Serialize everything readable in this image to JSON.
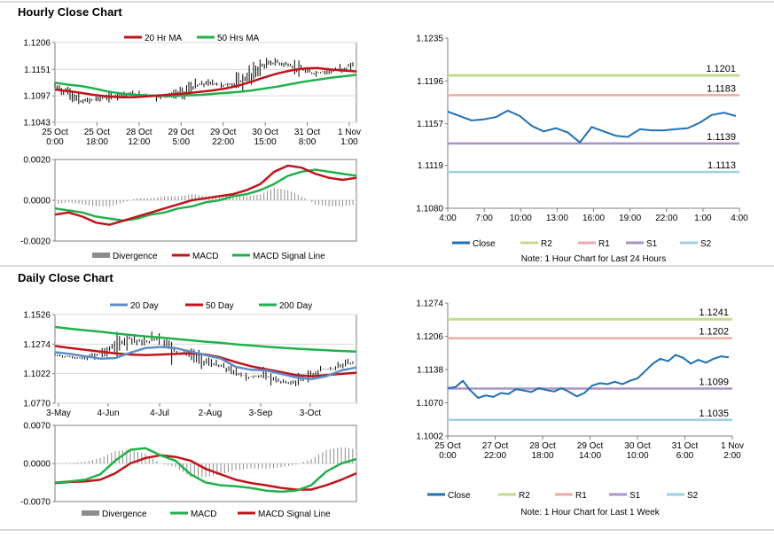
{
  "sections": {
    "hourly_title": "Hourly Close Chart",
    "daily_title": "Daily Close Chart"
  },
  "colors": {
    "close": "#1f6fb4",
    "ma_red": "#c0141b",
    "ma_green": "#22b04c",
    "ma_blue": "#5b8ec7",
    "r2": "#c5d98c",
    "r1": "#f0a9a5",
    "s1": "#a993c6",
    "s2": "#9cd2e2",
    "divergence": "#8c8c8c",
    "price_bar": "#000000"
  },
  "chart_data": [
    {
      "id": "hourly_price",
      "type": "line",
      "legend": [
        "20 Hr MA",
        "50 Hrs MA"
      ],
      "x_ticks": [
        "25 Oct\n0:00",
        "25 Oct\n18:00",
        "28 Oct\n12:00",
        "29 Oct\n5:00",
        "29 Oct\n22:00",
        "30 Oct\n15:00",
        "31 Oct\n8:00",
        "1 Nov\n1:00"
      ],
      "y_ticks": [
        "1.1206",
        "1.1151",
        "1.1097",
        "1.1043"
      ],
      "ylim": [
        1.1043,
        1.1206
      ],
      "series": [
        {
          "name": "20 Hr MA",
          "values": [
            1.111,
            1.1107,
            1.1103,
            1.1099,
            1.1096,
            1.1094,
            1.1094,
            1.1096,
            1.1098,
            1.11,
            1.1102,
            1.1105,
            1.1108,
            1.1112,
            1.1118,
            1.1126,
            1.1135,
            1.1143,
            1.1149,
            1.1153,
            1.1154,
            1.1151,
            1.1149,
            1.1147
          ]
        },
        {
          "name": "50 Hrs MA",
          "values": [
            1.1124,
            1.112,
            1.1117,
            1.1112,
            1.1106,
            1.1102,
            1.1099,
            1.1098,
            1.1097,
            1.1097,
            1.1098,
            1.1099,
            1.1101,
            1.1103,
            1.1105,
            1.1108,
            1.1112,
            1.1116,
            1.1121,
            1.1126,
            1.113,
            1.1134,
            1.1137,
            1.114
          ]
        },
        {
          "name": "Close",
          "values": [
            1.1115,
            1.1104,
            1.1085,
            1.109,
            1.1094,
            1.1099,
            1.1102,
            1.11,
            1.1095,
            1.1098,
            1.1105,
            1.1118,
            1.1124,
            1.1119,
            1.1122,
            1.1136,
            1.1158,
            1.1166,
            1.116,
            1.115,
            1.1143,
            1.1147,
            1.115,
            1.116
          ]
        }
      ]
    },
    {
      "id": "hourly_macd",
      "type": "line",
      "legend": [
        "Divergence",
        "MACD",
        "MACD Signal Line"
      ],
      "y_ticks": [
        "0.0020",
        "0.0000",
        "-0.0020"
      ],
      "ylim": [
        -0.002,
        0.002
      ],
      "series": [
        {
          "name": "MACD",
          "values": [
            -0.0007,
            -0.0006,
            -0.0008,
            -0.0011,
            -0.0012,
            -0.001,
            -0.0008,
            -0.0006,
            -0.0004,
            -0.0002,
            0.0,
            0.0001,
            0.0002,
            0.0003,
            0.0005,
            0.0008,
            0.0014,
            0.0017,
            0.0016,
            0.0013,
            0.0011,
            0.001,
            0.0011
          ]
        },
        {
          "name": "MACD Signal Line",
          "values": [
            -0.0004,
            -0.0005,
            -0.0006,
            -0.0008,
            -0.0009,
            -0.001,
            -0.0009,
            -0.0007,
            -0.0006,
            -0.0004,
            -0.0003,
            -0.0001,
            0.0,
            0.0002,
            0.0003,
            0.0005,
            0.0008,
            0.0012,
            0.0014,
            0.0015,
            0.0014,
            0.0013,
            0.0012
          ]
        },
        {
          "name": "Divergence",
          "values": [
            -0.0002,
            -0.0001,
            -0.0002,
            -0.0003,
            -0.0003,
            -0.0001,
            0.0001,
            0.0001,
            0.0002,
            0.0002,
            0.0003,
            0.0002,
            0.0002,
            0.0002,
            0.0002,
            0.0003,
            0.0006,
            0.0005,
            0.0002,
            -0.0002,
            -0.0003,
            -0.0003,
            -0.0002
          ]
        }
      ]
    },
    {
      "id": "hourly_24h",
      "type": "line",
      "x_ticks": [
        "4:00",
        "7:00",
        "10:00",
        "13:00",
        "16:00",
        "19:00",
        "22:00",
        "1:00",
        "4:00"
      ],
      "y_ticks": [
        "1.1235",
        "1.1196",
        "1.1157",
        "1.1119",
        "1.1080"
      ],
      "ylim": [
        1.108,
        1.1235
      ],
      "levels": [
        {
          "name": "R2",
          "value": 1.1201,
          "label": "1.1201"
        },
        {
          "name": "R1",
          "value": 1.1183,
          "label": "1.1183"
        },
        {
          "name": "S1",
          "value": 1.1139,
          "label": "1.1139"
        },
        {
          "name": "S2",
          "value": 1.1113,
          "label": "1.1113"
        }
      ],
      "series": [
        {
          "name": "Close",
          "values": [
            1.1168,
            1.1164,
            1.116,
            1.1161,
            1.1163,
            1.1169,
            1.1164,
            1.1155,
            1.115,
            1.1153,
            1.1149,
            1.114,
            1.1154,
            1.115,
            1.1146,
            1.1145,
            1.1152,
            1.1151,
            1.1151,
            1.1152,
            1.1153,
            1.1158,
            1.1165,
            1.1167,
            1.1164
          ]
        }
      ],
      "legend": [
        "Close",
        "R2",
        "R1",
        "S1",
        "S2"
      ],
      "note": "Note: 1 Hour Chart for Last 24 Hours"
    },
    {
      "id": "daily_price",
      "type": "line",
      "legend": [
        "20 Day",
        "50 Day",
        "200 Day"
      ],
      "x_ticks": [
        "3-May",
        "4-Jun",
        "4-Jul",
        "2-Aug",
        "3-Sep",
        "3-Oct"
      ],
      "y_ticks": [
        "1.1526",
        "1.1274",
        "1.1022",
        "1.0770"
      ],
      "ylim": [
        1.077,
        1.1526
      ],
      "series": [
        {
          "name": "20 Day",
          "values": [
            1.1205,
            1.119,
            1.117,
            1.115,
            1.1155,
            1.12,
            1.124,
            1.125,
            1.124,
            1.121,
            1.118,
            1.115,
            1.108,
            1.1055,
            1.105,
            1.102,
            1.099,
            1.0975,
            1.1,
            1.105,
            1.1075
          ]
        },
        {
          "name": "50 Day",
          "values": [
            1.1258,
            1.124,
            1.1225,
            1.121,
            1.1195,
            1.1185,
            1.118,
            1.1185,
            1.119,
            1.1195,
            1.1185,
            1.116,
            1.112,
            1.1085,
            1.106,
            1.1035,
            1.101,
            1.1,
            1.101,
            1.102,
            1.103
          ]
        },
        {
          "name": "200 Day",
          "values": [
            1.142,
            1.1405,
            1.1392,
            1.138,
            1.1365,
            1.1352,
            1.134,
            1.133,
            1.1318,
            1.1307,
            1.1295,
            1.1285,
            1.1272,
            1.1262,
            1.1252,
            1.1243,
            1.1235,
            1.1228,
            1.1222,
            1.1215,
            1.121
          ]
        },
        {
          "name": "Close",
          "values": [
            1.118,
            1.1165,
            1.115,
            1.119,
            1.125,
            1.133,
            1.128,
            1.134,
            1.122,
            1.119,
            1.113,
            1.109,
            1.104,
            1.099,
            1.101,
            1.096,
            1.094,
            1.0995,
            1.106,
            1.107,
            1.112
          ]
        }
      ]
    },
    {
      "id": "daily_macd",
      "type": "line",
      "legend": [
        "Divergence",
        "MACD",
        "MACD Signal Line"
      ],
      "y_ticks": [
        "0.0070",
        "0.0000",
        "-0.0070"
      ],
      "ylim": [
        -0.007,
        0.007
      ],
      "series": [
        {
          "name": "MACD",
          "values": [
            -0.0035,
            -0.0033,
            -0.003,
            -0.002,
            0.0005,
            0.0025,
            0.0028,
            0.0015,
            0.0005,
            -0.002,
            -0.0035,
            -0.004,
            -0.0042,
            -0.0045,
            -0.005,
            -0.0052,
            -0.005,
            -0.004,
            -0.0015,
            0.0,
            0.0008
          ]
        },
        {
          "name": "MACD Signal Line",
          "values": [
            -0.0036,
            -0.0034,
            -0.0033,
            -0.003,
            -0.0018,
            0.0,
            0.001,
            0.0015,
            0.0012,
            0.0005,
            -0.001,
            -0.002,
            -0.003,
            -0.0036,
            -0.004,
            -0.0045,
            -0.0048,
            -0.0048,
            -0.004,
            -0.003,
            -0.0018
          ]
        },
        {
          "name": "Divergence",
          "values": [
            0.0001,
            0.0001,
            0.0003,
            0.001,
            0.0023,
            0.0025,
            0.0018,
            0.0,
            -0.0007,
            -0.0025,
            -0.0025,
            -0.002,
            -0.0012,
            -0.0009,
            -0.001,
            -0.0007,
            -0.0002,
            0.0008,
            0.0025,
            0.003,
            0.0026
          ]
        }
      ]
    },
    {
      "id": "weekly_1h",
      "type": "line",
      "x_ticks": [
        "25 Oct\n0:00",
        "27 Oct\n22:00",
        "28 Oct\n18:00",
        "29 Oct\n14:00",
        "30 Oct\n10:00",
        "31 Oct\n6:00",
        "1 Nov\n2:00"
      ],
      "y_ticks": [
        "1.1274",
        "1.1206",
        "1.1138",
        "1.1070",
        "1.1002"
      ],
      "ylim": [
        1.1002,
        1.1274
      ],
      "levels": [
        {
          "name": "R2",
          "value": 1.1241,
          "label": "1.1241"
        },
        {
          "name": "R1",
          "value": 1.1202,
          "label": "1.1202"
        },
        {
          "name": "S1",
          "value": 1.1099,
          "label": "1.1099"
        },
        {
          "name": "S2",
          "value": 1.1035,
          "label": "1.1035"
        }
      ],
      "series": [
        {
          "name": "Close",
          "values": [
            1.11,
            1.1102,
            1.1115,
            1.1095,
            1.108,
            1.1085,
            1.1082,
            1.109,
            1.1088,
            1.1098,
            1.1095,
            1.1092,
            1.11,
            1.1096,
            1.1093,
            1.11,
            1.1092,
            1.1083,
            1.109,
            1.1105,
            1.111,
            1.1108,
            1.1113,
            1.1108,
            1.1115,
            1.112,
            1.1135,
            1.115,
            1.116,
            1.1155,
            1.1168,
            1.1162,
            1.115,
            1.1158,
            1.1152,
            1.116,
            1.1165,
            1.1163
          ]
        }
      ],
      "legend": [
        "Close",
        "R2",
        "R1",
        "S1",
        "S2"
      ],
      "note": "Note: 1 Hour Chart for Last 1 Week"
    }
  ]
}
